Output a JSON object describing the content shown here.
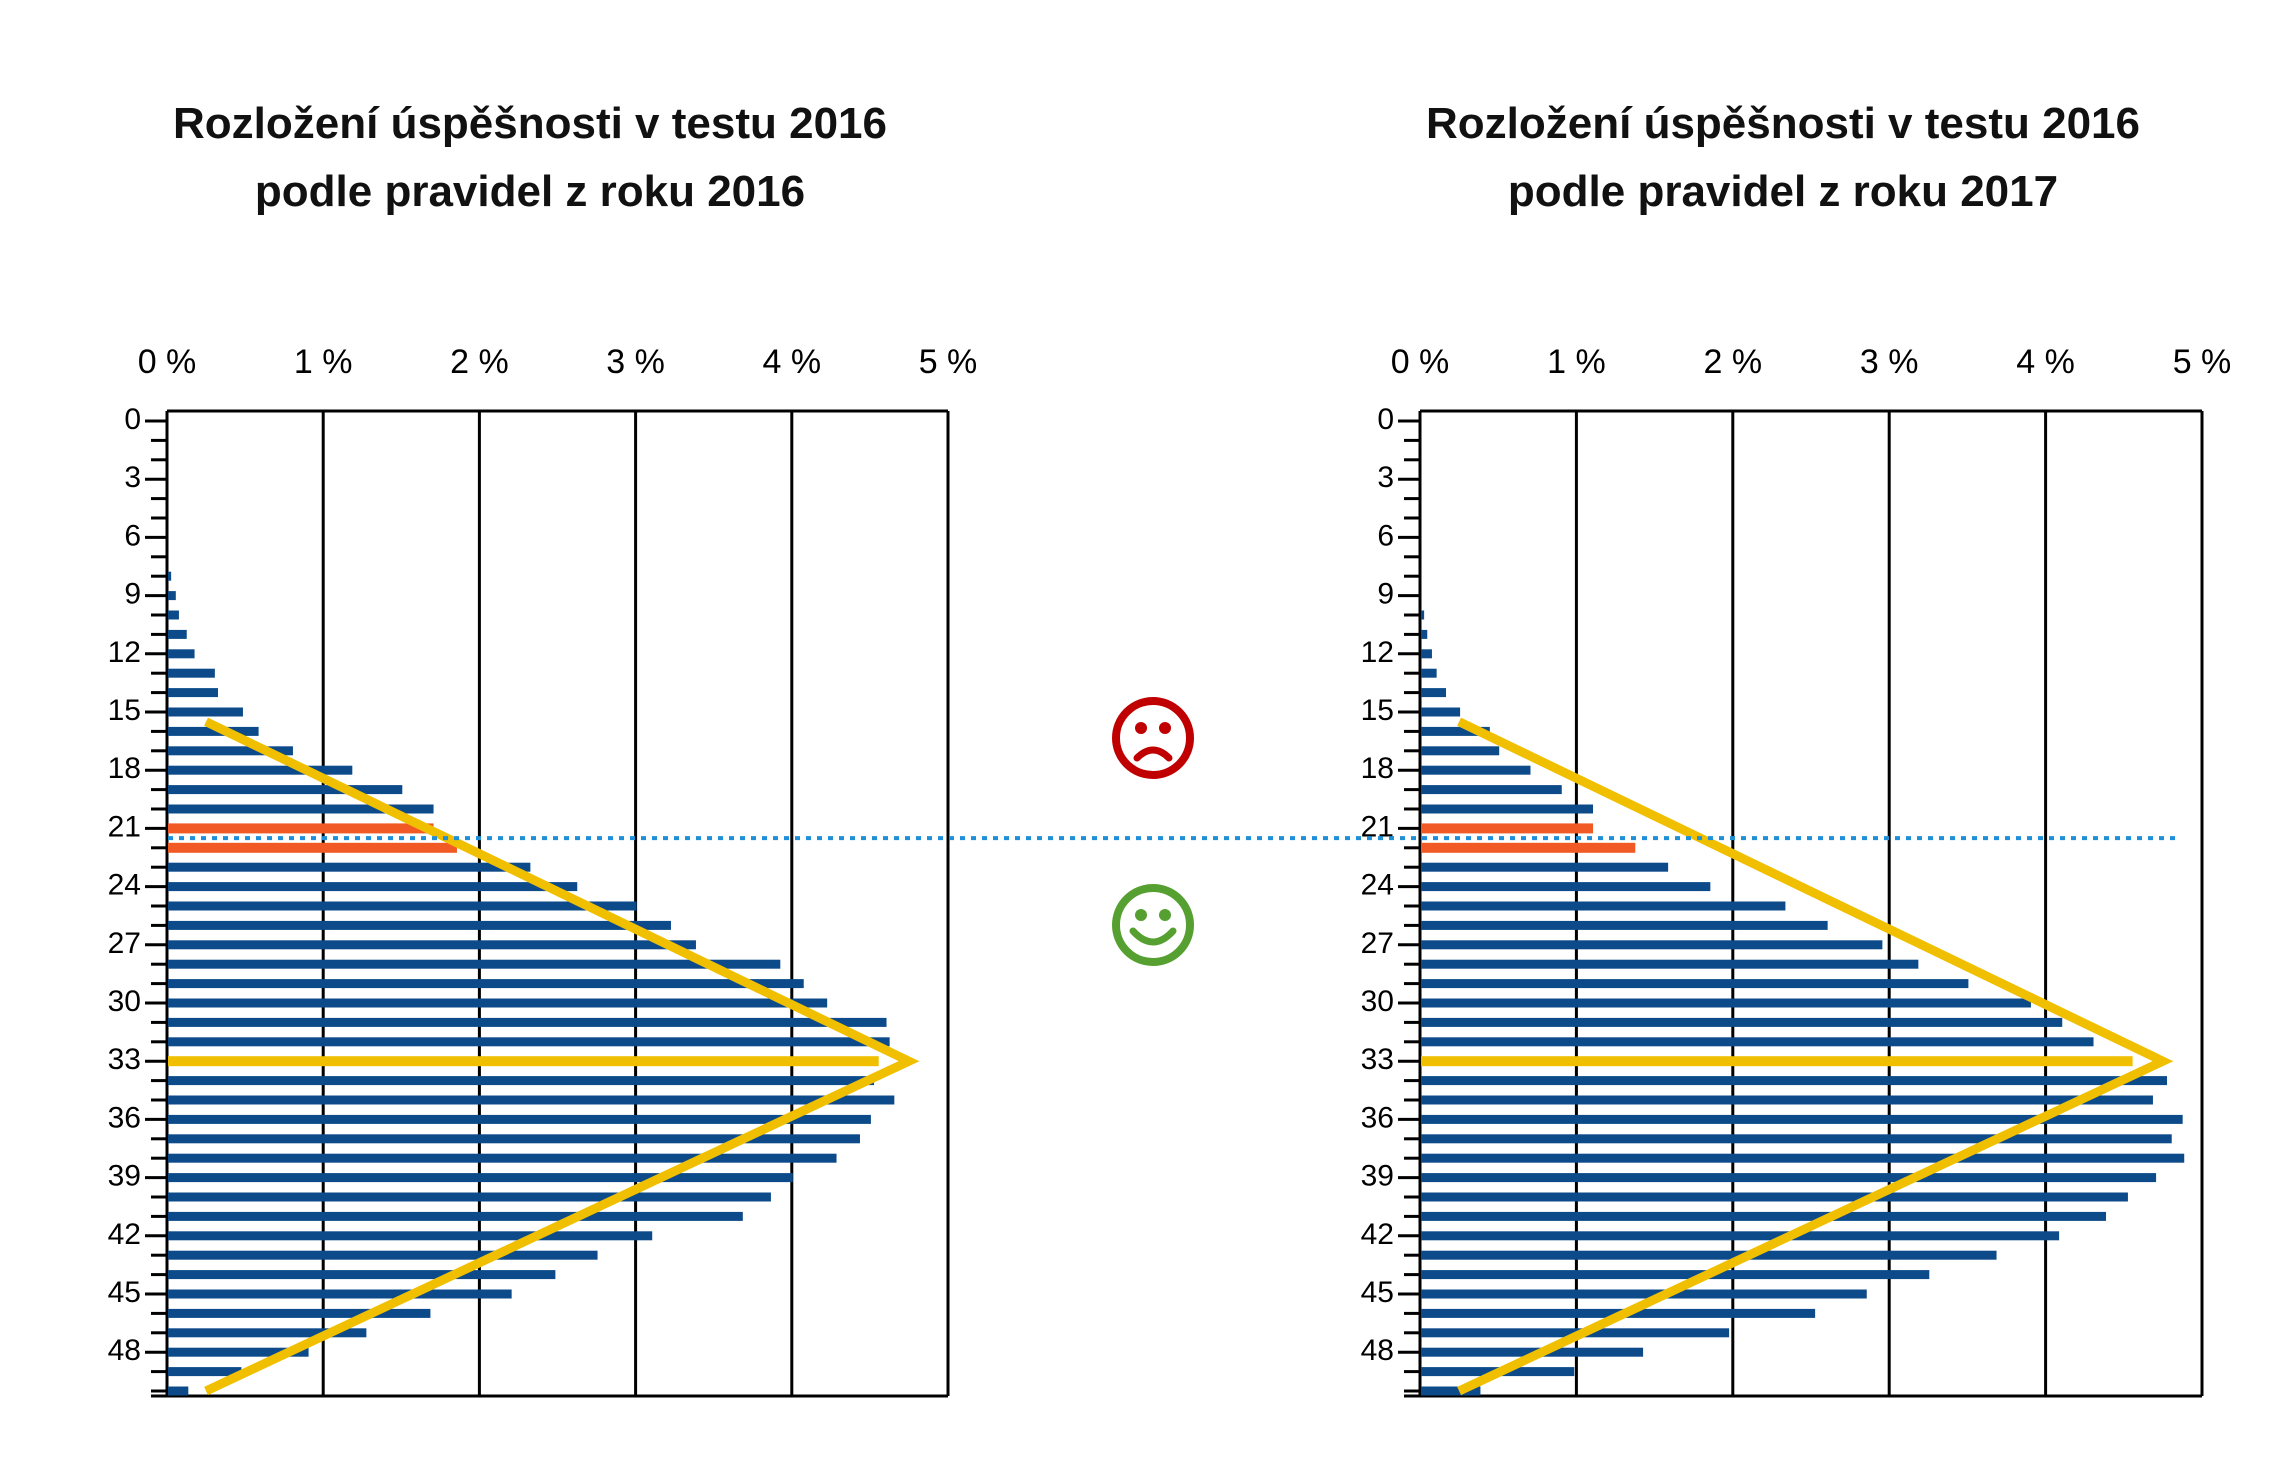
{
  "chart_data": [
    {
      "type": "bar",
      "orientation": "horizontal",
      "title_lines": [
        "Rozložení úspěšnosti v testu 2016",
        "podle pravidel z roku 2016"
      ],
      "x_ticks": [
        "0 %",
        "1 %",
        "2 %",
        "3 %",
        "4 %",
        "5 %"
      ],
      "xlim": [
        0,
        5
      ],
      "y_tick_labels": [
        "0",
        "3",
        "6",
        "9",
        "12",
        "15",
        "18",
        "21",
        "24",
        "27",
        "30",
        "33",
        "36",
        "39",
        "42",
        "45",
        "48"
      ],
      "ylim": [
        0,
        50
      ],
      "grid": true,
      "categories": [
        0,
        1,
        2,
        3,
        4,
        5,
        6,
        7,
        8,
        9,
        10,
        11,
        12,
        13,
        14,
        15,
        16,
        17,
        18,
        19,
        20,
        21,
        22,
        23,
        24,
        25,
        26,
        27,
        28,
        29,
        30,
        31,
        32,
        33,
        34,
        35,
        36,
        37,
        38,
        39,
        40,
        41,
        42,
        43,
        44,
        45,
        46,
        47,
        48,
        49,
        50
      ],
      "values": [
        0,
        0,
        0,
        0,
        0,
        0,
        0,
        0,
        0.02,
        0.05,
        0.07,
        0.12,
        0.17,
        0.3,
        0.32,
        0.48,
        0.58,
        0.8,
        1.18,
        1.5,
        1.7,
        1.7,
        1.85,
        2.32,
        2.62,
        3.0,
        3.22,
        3.38,
        3.92,
        4.07,
        4.22,
        4.6,
        4.62,
        4.55,
        4.52,
        4.65,
        4.5,
        4.43,
        4.28,
        4.0,
        3.86,
        3.68,
        3.1,
        2.75,
        2.48,
        2.2,
        1.68,
        1.27,
        0.9,
        0.47,
        0.13
      ],
      "highlight_red": [
        21,
        22
      ],
      "highlight_yellow": [
        33
      ],
      "triangle": {
        "top": [
          0.25,
          15.5
        ],
        "apex": [
          4.75,
          33
        ],
        "bottom": [
          0.25,
          50
        ]
      }
    },
    {
      "type": "bar",
      "orientation": "horizontal",
      "title_lines": [
        "Rozložení úspěšnosti v testu 2016",
        "podle pravidel z roku 2017"
      ],
      "x_ticks": [
        "0 %",
        "1 %",
        "2 %",
        "3 %",
        "4 %",
        "5 %"
      ],
      "xlim": [
        0,
        5
      ],
      "y_tick_labels": [
        "0",
        "3",
        "6",
        "9",
        "12",
        "15",
        "18",
        "21",
        "24",
        "27",
        "30",
        "33",
        "36",
        "39",
        "42",
        "45",
        "48"
      ],
      "ylim": [
        0,
        50
      ],
      "grid": true,
      "categories": [
        0,
        1,
        2,
        3,
        4,
        5,
        6,
        7,
        8,
        9,
        10,
        11,
        12,
        13,
        14,
        15,
        16,
        17,
        18,
        19,
        20,
        21,
        22,
        23,
        24,
        25,
        26,
        27,
        28,
        29,
        30,
        31,
        32,
        33,
        34,
        35,
        36,
        37,
        38,
        39,
        40,
        41,
        42,
        43,
        44,
        45,
        46,
        47,
        48,
        49,
        50
      ],
      "values": [
        0,
        0,
        0,
        0,
        0,
        0,
        0,
        0,
        0,
        0,
        0.02,
        0.04,
        0.07,
        0.1,
        0.16,
        0.25,
        0.44,
        0.5,
        0.7,
        0.9,
        1.1,
        1.1,
        1.37,
        1.58,
        1.85,
        2.33,
        2.6,
        2.95,
        3.18,
        3.5,
        3.9,
        4.1,
        4.3,
        4.55,
        4.77,
        4.68,
        4.87,
        4.8,
        4.88,
        4.7,
        4.52,
        4.38,
        4.08,
        3.68,
        3.25,
        2.85,
        2.52,
        1.97,
        1.42,
        0.98,
        0.38
      ],
      "highlight_red": [
        21,
        22
      ],
      "highlight_yellow": [
        33
      ],
      "triangle": {
        "top": [
          0.25,
          15.5
        ],
        "apex": [
          4.75,
          33
        ],
        "bottom": [
          0.25,
          50
        ]
      }
    }
  ],
  "dashed_threshold_value": 21.5,
  "icons": {
    "upper": "sad-face-icon",
    "lower": "happy-face-icon"
  },
  "colors": {
    "bar": "#0d4a8a",
    "highlight_red": "#f15a24",
    "triangle": "#f0c000",
    "threshold": "#1f8fd8",
    "sad": "#c00000",
    "happy": "#55a030"
  }
}
